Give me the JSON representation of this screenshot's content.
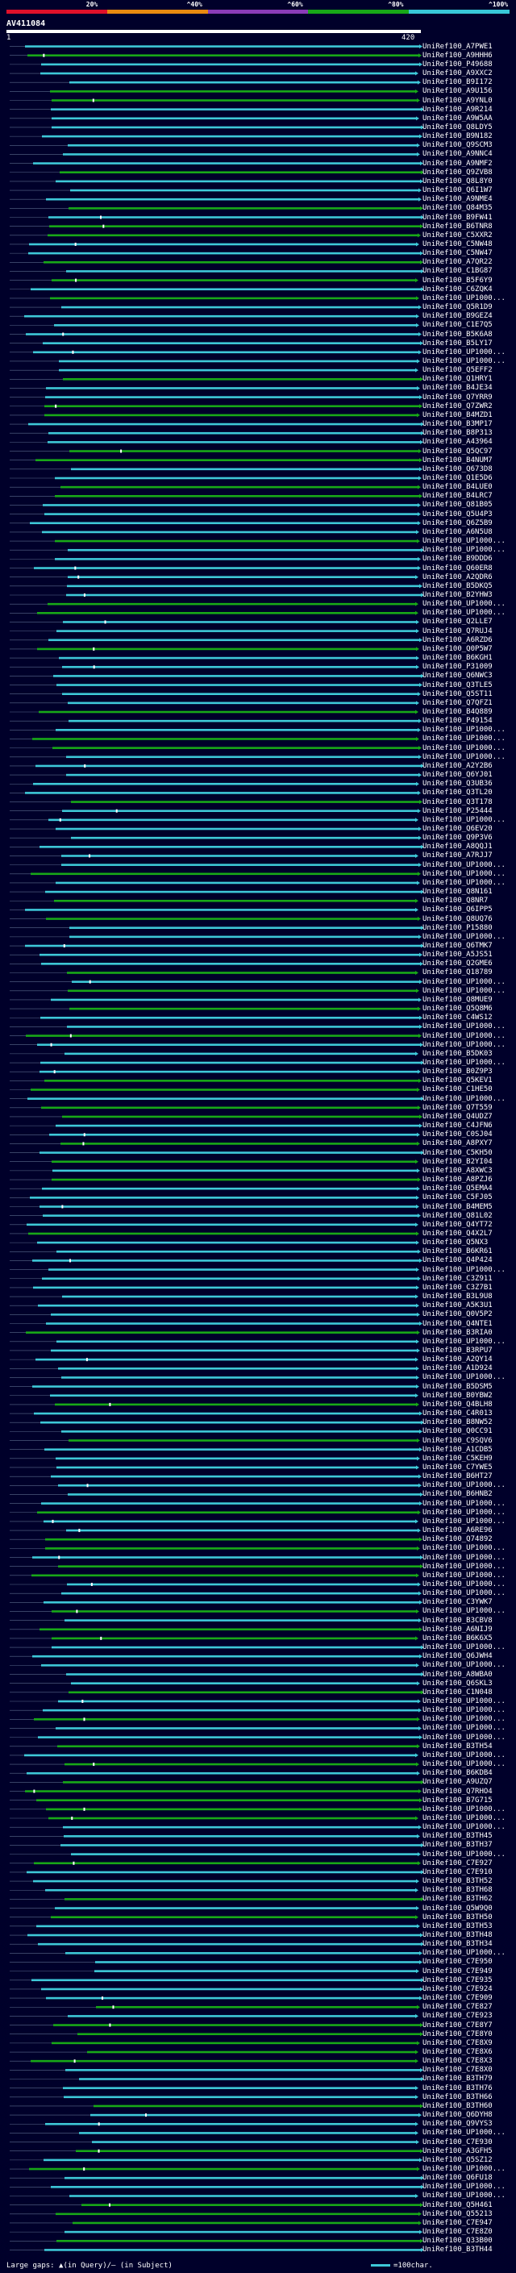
{
  "chart_data": {
    "type": "alignment-overview",
    "query": {
      "name": "AV411084",
      "start": 1,
      "end": 420
    },
    "identity_scale": {
      "ticks": [
        "20%",
        "^40%",
        "^60%",
        "^80%",
        "^100%"
      ],
      "colors": [
        "#e0102a",
        "#e88a10",
        "#8a3cb8",
        "#18a818",
        "#38c8d8"
      ]
    },
    "legend": {
      "gaps_text": "Large gaps: ▲(in Query)/– (in Subject)",
      "scale_text": "=100char."
    },
    "hits": [
      "UniRef100_A7PWE1",
      "UniRef100_A9HHH6",
      "UniRef100_P49688",
      "UniRef100_A9XXC2",
      "UniRef100_B9I172",
      "UniRef100_A9U156",
      "UniRef100_A9YNL0",
      "UniRef100_A9R214",
      "UniRef100_A9W5AA",
      "UniRef100_Q8LDY5",
      "UniRef100_B9N182",
      "UniRef100_Q9SCM3",
      "UniRef100_A9NNC4",
      "UniRef100_A9NMF2",
      "UniRef100_Q9ZVB8",
      "UniRef100_Q8L8Y0",
      "UniRef100_Q6I1W7",
      "UniRef100_A9NME4",
      "UniRef100_Q84M35",
      "UniRef100_B9FW41",
      "UniRef100_B6TNR8",
      "UniRef100_C5XXR2",
      "UniRef100_C5NW48",
      "UniRef100_C5NW47",
      "UniRef100_A7QR22",
      "UniRef100_C1BG87",
      "UniRef100_B5F6Y9",
      "UniRef100_C6ZQK4",
      "UniRef100_UP1000...",
      "UniRef100_Q5R1D9",
      "UniRef100_B9GEZ4",
      "UniRef100_C1E7Q5",
      "UniRef100_B5K6A8",
      "UniRef100_B5LY17",
      "UniRef100_UP1000...",
      "UniRef100_UP1000...",
      "UniRef100_Q5EFF2",
      "UniRef100_Q1HRY1",
      "UniRef100_B4JE34",
      "UniRef100_Q7YRR9",
      "UniRef100_Q7ZWR2",
      "UniRef100_B4MZD1",
      "UniRef100_B3MP17",
      "UniRef100_B8P313",
      "UniRef100_A43964",
      "UniRef100_Q5QC97",
      "UniRef100_B4NUM7",
      "UniRef100_Q673D8",
      "UniRef100_Q1E5D6",
      "UniRef100_B4LUE0",
      "UniRef100_B4LRC7",
      "UniRef100_Q81B05",
      "UniRef100_Q5U4P3",
      "UniRef100_Q6Z5B9",
      "UniRef100_A6N5U8",
      "UniRef100_UP1000...",
      "UniRef100_UP1000...",
      "UniRef100_B9DDD6",
      "UniRef100_Q60ER8",
      "UniRef100_A2QDR6",
      "UniRef100_B5DKQ5",
      "UniRef100_B2YHW3",
      "UniRef100_UP1000...",
      "UniRef100_UP1000...",
      "UniRef100_Q2LLE7",
      "UniRef100_Q7RUJ4",
      "UniRef100_A6RZD6",
      "UniRef100_Q0P5W7",
      "UniRef100_B6KGH1",
      "UniRef100_P31009",
      "UniRef100_Q6NWC3",
      "UniRef100_Q3TLE5",
      "UniRef100_Q5ST11",
      "UniRef100_Q7QFZ1",
      "UniRef100_B4Q889",
      "UniRef100_P49154",
      "UniRef100_UP1000...",
      "UniRef100_UP1000...",
      "UniRef100_UP1000...",
      "UniRef100_UP1000...",
      "UniRef100_A2Y2B6",
      "UniRef100_Q6YJ01",
      "UniRef100_Q3UB36",
      "UniRef100_Q3TL20",
      "UniRef100_Q3T178",
      "UniRef100_P25444",
      "UniRef100_UP1000...",
      "UniRef100_Q6EV20",
      "UniRef100_Q9P3V6",
      "UniRef100_A8QQJ1",
      "UniRef100_A7RJJ7",
      "UniRef100_UP1000...",
      "UniRef100_UP1000...",
      "UniRef100_UP1000...",
      "UniRef100_Q8N161",
      "UniRef100_Q8NR7",
      "UniRef100_Q6IPP5",
      "UniRef100_Q8UQ76",
      "UniRef100_P15880",
      "UniRef100_UP1000...",
      "UniRef100_Q6TMK7",
      "UniRef100_A5JS51",
      "UniRef100_Q2GME6",
      "UniRef100_Q18789",
      "UniRef100_UP1000...",
      "UniRef100_UP1000...",
      "UniRef100_Q8MUE9",
      "UniRef100_Q5Q8M6",
      "UniRef100_C4WS12",
      "UniRef100_UP1000...",
      "UniRef100_UP1000...",
      "UniRef100_UP1000...",
      "UniRef100_B5DK03",
      "UniRef100_UP1000...",
      "UniRef100_B0Z9P3",
      "UniRef100_Q5KEV1",
      "UniRef100_C1HE50",
      "UniRef100_UP1000...",
      "UniRef100_Q7T559",
      "UniRef100_Q4UDZ7",
      "UniRef100_C4JFN6",
      "UniRef100_C0SJ04",
      "UniRef100_A8PXY7",
      "UniRef100_C5KH50",
      "UniRef100_B2YI04",
      "UniRef100_A8XWC3",
      "UniRef100_A8PZJ6",
      "UniRef100_Q5EMA4",
      "UniRef100_C5FJ05",
      "UniRef100_B4MEM5",
      "UniRef100_Q81L02",
      "UniRef100_Q4YT72",
      "UniRef100_Q4X2L7",
      "UniRef100_Q5NX3",
      "UniRef100_B6KR61",
      "UniRef100_Q4P424",
      "UniRef100_UP1000...",
      "UniRef100_C3Z911",
      "UniRef100_C3Z7B1",
      "UniRef100_B3L9U8",
      "UniRef100_A5K3U1",
      "UniRef100_Q0V5P2",
      "UniRef100_Q4NTE1",
      "UniRef100_B3RIA0",
      "UniRef100_UP1000...",
      "UniRef100_B3RPU7",
      "UniRef100_A2QY14",
      "UniRef100_A1D924",
      "UniRef100_UP1000...",
      "UniRef100_B5DSM5",
      "UniRef100_B0YBW2",
      "UniRef100_Q4BLH8",
      "UniRef100_C4R013",
      "UniRef100_B8NW52",
      "UniRef100_Q0CC91",
      "UniRef100_C9SQV6",
      "UniRef100_A1CDB5",
      "UniRef100_C5KEH9",
      "UniRef100_C7YWE5",
      "UniRef100_B6HT27",
      "UniRef100_UP1000...",
      "UniRef100_B6HNB2",
      "UniRef100_UP1000...",
      "UniRef100_UP1000...",
      "UniRef100_UP1000...",
      "UniRef100_A6RE96",
      "UniRef100_Q74892",
      "UniRef100_UP1000...",
      "UniRef100_UP1000...",
      "UniRef100_UP1000...",
      "UniRef100_UP1000...",
      "UniRef100_UP1000...",
      "UniRef100_UP1000...",
      "UniRef100_C3YWK7",
      "UniRef100_UP1000...",
      "UniRef100_B3CBV8",
      "UniRef100_A6NIJ9",
      "UniRef100_B6K6X5",
      "UniRef100_UP1000...",
      "UniRef100_Q6JWH4",
      "UniRef100_UP1000...",
      "UniRef100_A8WBA0",
      "UniRef100_Q6SKL3",
      "UniRef100_C1N048",
      "UniRef100_UP1000...",
      "UniRef100_UP1000...",
      "UniRef100_UP1000...",
      "UniRef100_UP1000...",
      "UniRef100_UP1000...",
      "UniRef100_B3TH54",
      "UniRef100_UP1000...",
      "UniRef100_UP1000...",
      "UniRef100_B6KDB4",
      "UniRef100_A9UZQ7",
      "UniRef100_Q7RHO4",
      "UniRef100_B7G715",
      "UniRef100_UP1000...",
      "UniRef100_UP1000...",
      "UniRef100_UP1000...",
      "UniRef100_B3TH45",
      "UniRef100_B3TH37",
      "UniRef100_UP1000...",
      "UniRef100_C7E927",
      "UniRef100_C7E910",
      "UniRef100_B3TH52",
      "UniRef100_B3TH68",
      "UniRef100_B3TH62",
      "UniRef100_Q5W9Q0",
      "UniRef100_B3TH50",
      "UniRef100_B3TH53",
      "UniRef100_B3TH48",
      "UniRef100_B3TH34",
      "UniRef100_UP1000...",
      "UniRef100_C7E950",
      "UniRef100_C7E949",
      "UniRef100_C7E935",
      "UniRef100_C7E924",
      "UniRef100_C7E909",
      "UniRef100_C7E827",
      "UniRef100_C7E923",
      "UniRef100_C7E8Y7",
      "UniRef100_C7E8Y0",
      "UniRef100_C7E8X9",
      "UniRef100_C7E8X6",
      "UniRef100_C7E8X3",
      "UniRef100_C7E8X0",
      "UniRef100_B3TH79",
      "UniRef100_B3TH76",
      "UniRef100_B3TH66",
      "UniRef100_B3TH60",
      "UniRef100_Q6DYH8",
      "UniRef100_Q9VYS3",
      "UniRef100_UP1000...",
      "UniRef100_C7E930",
      "UniRef100_A3GFH5",
      "UniRef100_Q5SZ12",
      "UniRef100_UP1000...",
      "UniRef100_Q6FU18",
      "UniRef100_UP1000...",
      "UniRef100_UP1000...",
      "UniRef100_Q5H461",
      "UniRef100_Q55213",
      "UniRef100_C7E947",
      "UniRef100_C7E8Z0",
      "UniRef100_Q33B00",
      "UniRef100_B3TH44"
    ]
  }
}
